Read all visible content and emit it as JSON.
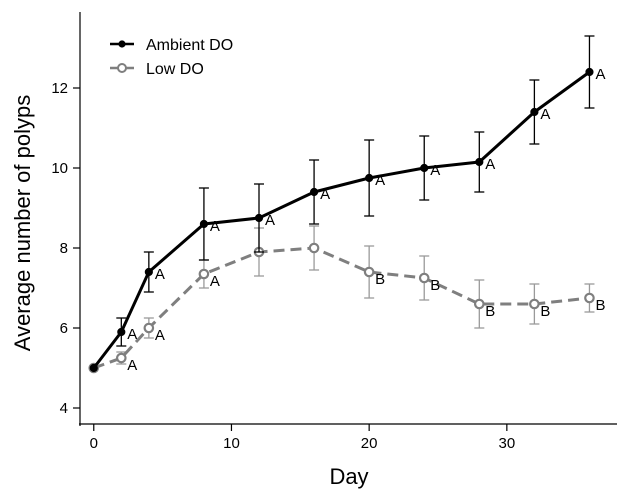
{
  "chart_data": {
    "type": "line",
    "title": "",
    "xlabel": "Day",
    "ylabel": "Average number of polyps",
    "xlim": [
      -1,
      38
    ],
    "ylim": [
      3.6,
      13.9
    ],
    "xticks": [
      0,
      10,
      20,
      30
    ],
    "yticks": [
      4,
      6,
      8,
      10,
      12
    ],
    "grid": false,
    "legend_position": "top-left",
    "series": [
      {
        "name": "Ambient DO",
        "color": "#000000",
        "line_style": "solid",
        "marker": "filled-circle",
        "x": [
          0,
          2,
          4,
          8,
          12,
          16,
          20,
          24,
          28,
          32,
          36
        ],
        "y": [
          5.0,
          5.9,
          7.4,
          8.6,
          8.75,
          9.4,
          9.75,
          10.0,
          10.15,
          11.4,
          12.4
        ],
        "error": [
          null,
          0.35,
          0.5,
          0.9,
          0.85,
          0.8,
          0.95,
          0.8,
          0.75,
          0.8,
          0.9
        ],
        "labels": [
          "",
          "A",
          "A",
          "A",
          "A",
          "A",
          "A",
          "A",
          "A",
          "A",
          "A"
        ]
      },
      {
        "name": "Low DO",
        "color": "#7f7f7f",
        "line_style": "dashed",
        "marker": "open-circle",
        "x": [
          0,
          2,
          4,
          8,
          12,
          16,
          20,
          24,
          28,
          32,
          36
        ],
        "y": [
          5.0,
          5.25,
          6.0,
          7.35,
          7.9,
          8.0,
          7.4,
          7.25,
          6.6,
          6.6,
          6.75
        ],
        "error": [
          null,
          0.15,
          0.25,
          0.35,
          0.6,
          0.55,
          0.65,
          0.55,
          0.6,
          0.5,
          0.35
        ],
        "labels": [
          "",
          "A",
          "A",
          "A",
          "",
          "",
          "B",
          "B",
          "B",
          "B",
          "B"
        ]
      }
    ]
  }
}
